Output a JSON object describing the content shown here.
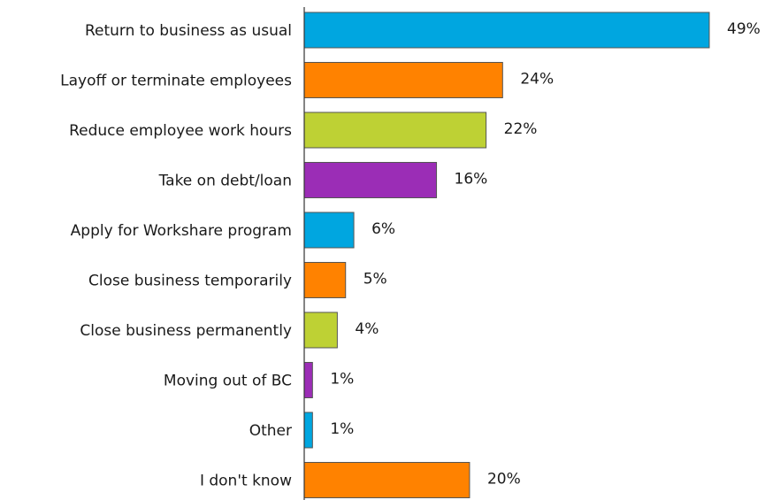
{
  "chart_data": {
    "type": "bar",
    "orientation": "horizontal",
    "title": "",
    "xlabel": "",
    "ylabel": "",
    "xlim": [
      0,
      49
    ],
    "grid": false,
    "legend": "none",
    "categories": [
      "Return to business as usual",
      "Layoff or terminate employees",
      "Reduce employee work hours",
      "Take on debt/loan",
      "Apply for Workshare program",
      "Close business temporarily",
      "Close business permanently",
      "Moving out of BC",
      "Other",
      "I don't know"
    ],
    "values": [
      49,
      24,
      22,
      16,
      6,
      5,
      4,
      1,
      1,
      20
    ],
    "value_labels": [
      "49%",
      "24%",
      "22%",
      "16%",
      "6%",
      "5%",
      "4%",
      "1%",
      "1%",
      "20%"
    ],
    "colors": [
      "#00a6e0",
      "#ff8200",
      "#bed134",
      "#9b2db6",
      "#00a6e0",
      "#ff8200",
      "#bed134",
      "#9b2db6",
      "#00a6e0",
      "#ff8200"
    ]
  }
}
